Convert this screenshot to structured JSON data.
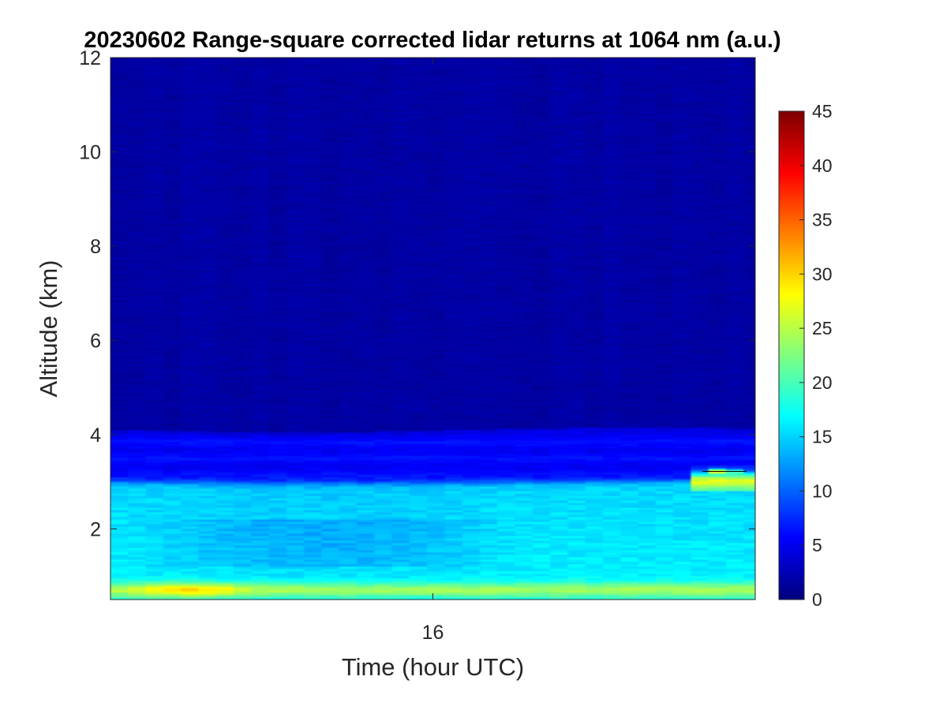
{
  "chart_data": {
    "type": "heatmap",
    "title": "20230602  Range-square corrected lidar returns at 1064 nm (a.u.)",
    "xlabel": "Time (hour UTC)",
    "ylabel": "Altitude (km)",
    "xlim": [
      15.27,
      16.73
    ],
    "ylim": [
      0.5,
      12
    ],
    "x_ticks": [
      16
    ],
    "x_tick_labels": [
      "16"
    ],
    "y_ticks": [
      2,
      4,
      6,
      8,
      10,
      12
    ],
    "y_tick_labels": [
      "2",
      "4",
      "6",
      "8",
      "10",
      "12"
    ],
    "colormap": "jet",
    "colorbar": {
      "range": [
        0,
        45
      ],
      "ticks": [
        0,
        5,
        10,
        15,
        20,
        25,
        30,
        35,
        40,
        45
      ],
      "tick_labels": [
        "0",
        "5",
        "10",
        "15",
        "20",
        "25",
        "30",
        "35",
        "40",
        "45"
      ],
      "location": "right"
    },
    "field": {
      "time_range_hours": [
        15.27,
        16.73
      ],
      "altitude_range_km": [
        0.5,
        12
      ],
      "background_free_troposphere": 1,
      "aerosol_layer_top_km": {
        "before_16_6": 3.0,
        "after_16_6": 3.2
      },
      "residual_layer_value": 6,
      "residual_layer_top_km": 4.1,
      "boundary_layer_value": 16,
      "surface_layer_value": 24,
      "surface_layer_peak_value": 30,
      "cloud_feature": {
        "time_hours": 16.66,
        "altitude_km": 3.22,
        "value": 45
      }
    }
  }
}
